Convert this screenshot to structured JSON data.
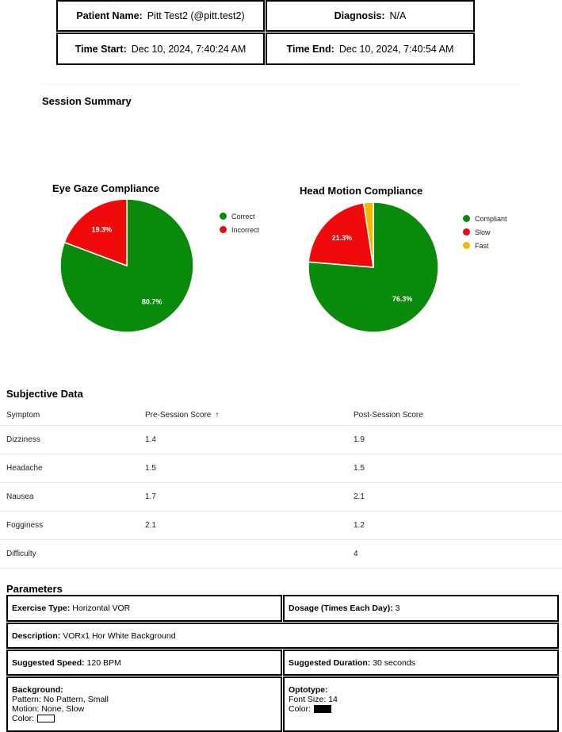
{
  "header": {
    "patient_label": "Patient Name:",
    "patient_value": "Pitt Test2 (@pitt.test2)",
    "diagnosis_label": "Diagnosis:",
    "diagnosis_value": "N/A",
    "start_label": "Time Start:",
    "start_value": "Dec 10, 2024, 7:40:24 AM",
    "end_label": "Time End:",
    "end_value": "Dec 10, 2024, 7:40:54 AM"
  },
  "summary": {
    "title": "Session Summary"
  },
  "charts": {
    "eye": {
      "title": "Eye Gaze Compliance",
      "slices": [
        {
          "name": "Correct",
          "value": 80.7,
          "label": "80.7%",
          "color": "#0a8a0a"
        },
        {
          "name": "Incorrect",
          "value": 19.3,
          "label": "19.3%",
          "color": "#ee0a0a"
        }
      ]
    },
    "head": {
      "title": "Head Motion Compliance",
      "slices": [
        {
          "name": "Compliant",
          "value": 76.3,
          "label": "76.3%",
          "color": "#0a8a0a"
        },
        {
          "name": "Slow",
          "value": 21.3,
          "label": "21.3%",
          "color": "#ee0a0a"
        },
        {
          "name": "Fast",
          "value": 2.4,
          "label": "",
          "color": "#f5b800"
        }
      ]
    }
  },
  "chart_data": [
    {
      "type": "pie",
      "title": "Eye Gaze Compliance",
      "categories": [
        "Correct",
        "Incorrect"
      ],
      "values": [
        80.7,
        19.3
      ],
      "legend": "right"
    },
    {
      "type": "pie",
      "title": "Head Motion Compliance",
      "categories": [
        "Compliant",
        "Slow",
        "Fast"
      ],
      "values": [
        76.3,
        21.3,
        2.4
      ],
      "legend": "right"
    }
  ],
  "subjective": {
    "title": "Subjective Data",
    "columns": [
      "Symptom",
      "Pre-Session Score",
      "Post-Session Score"
    ],
    "sort_icon": "arrow-up-icon",
    "rows": [
      {
        "symptom": "Dizziness",
        "pre": "1.4",
        "post": "1.9"
      },
      {
        "symptom": "Headache",
        "pre": "1.5",
        "post": "1.5"
      },
      {
        "symptom": "Nausea",
        "pre": "1.7",
        "post": "2.1"
      },
      {
        "symptom": "Fogginess",
        "pre": "2.1",
        "post": "1.2"
      },
      {
        "symptom": "Difficulty",
        "pre": "",
        "post": "4"
      }
    ]
  },
  "parameters": {
    "title": "Parameters",
    "exercise_label": "Exercise Type:",
    "exercise_value": "Horizontal VOR",
    "dosage_label": "Dosage (Times Each Day):",
    "dosage_value": "3",
    "description_label": "Description:",
    "description_value": "VORx1 Hor White Background",
    "speed_label": "Suggested Speed:",
    "speed_value": "120 BPM",
    "duration_label": "Suggested Duration:",
    "duration_value": "30 seconds",
    "background_label": "Background:",
    "background_pattern": "Pattern: No Pattern, Small",
    "background_motion": "Motion: None, Slow",
    "background_color_label": "Color:",
    "background_color": "#ffffff",
    "optotype_label": "Optotype:",
    "optotype_font": "Font Size: 14",
    "optotype_color_label": "Color:",
    "optotype_color": "#000000"
  }
}
